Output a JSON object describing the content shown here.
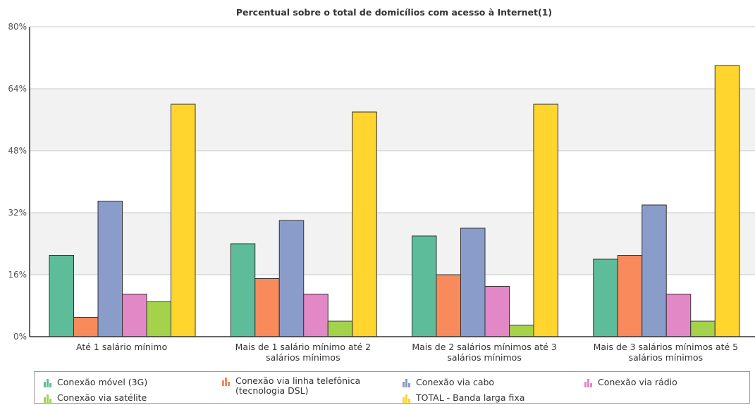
{
  "chart_data": {
    "type": "bar",
    "title": "Percentual sobre o total de domicílios com acesso à Internet(1)",
    "categories": [
      [
        "Até 1 salário mínimo"
      ],
      [
        "Mais de 1 salário mínimo até 2",
        "salários mínimos"
      ],
      [
        "Mais de 2 salários mínimos até 3",
        "salários mínimos"
      ],
      [
        "Mais de 3 salários mínimos até 5",
        "salários mínimos"
      ]
    ],
    "ylim": [
      0,
      80
    ],
    "yticks": [
      "0%",
      "16%",
      "32%",
      "48%",
      "64%",
      "80%"
    ],
    "ytick_values": [
      0,
      16,
      32,
      48,
      64,
      80
    ],
    "series": [
      {
        "name": "Conexão móvel (3G)",
        "color": "#5dbd9b",
        "values": [
          21,
          24,
          26,
          20
        ]
      },
      {
        "name": "Conexão via linha telefônica (tecnologia DSL)",
        "name_lines": [
          "Conexão via linha telefônica",
          "(tecnologia DSL)"
        ],
        "color": "#f98a5c",
        "values": [
          5,
          15,
          16,
          21
        ]
      },
      {
        "name": "Conexão via cabo",
        "color": "#8a9cca",
        "values": [
          35,
          30,
          28,
          34
        ]
      },
      {
        "name": "Conexão via rádio",
        "color": "#e388c6",
        "values": [
          11,
          11,
          13,
          11
        ]
      },
      {
        "name": "Conexão via satélite",
        "color": "#a4d34b",
        "values": [
          9,
          4,
          3,
          4
        ]
      },
      {
        "name": "TOTAL - Banda larga fixa",
        "color": "#ffd52e",
        "values": [
          60,
          58,
          60,
          70
        ]
      }
    ],
    "grid": true,
    "legend": "bottom"
  }
}
